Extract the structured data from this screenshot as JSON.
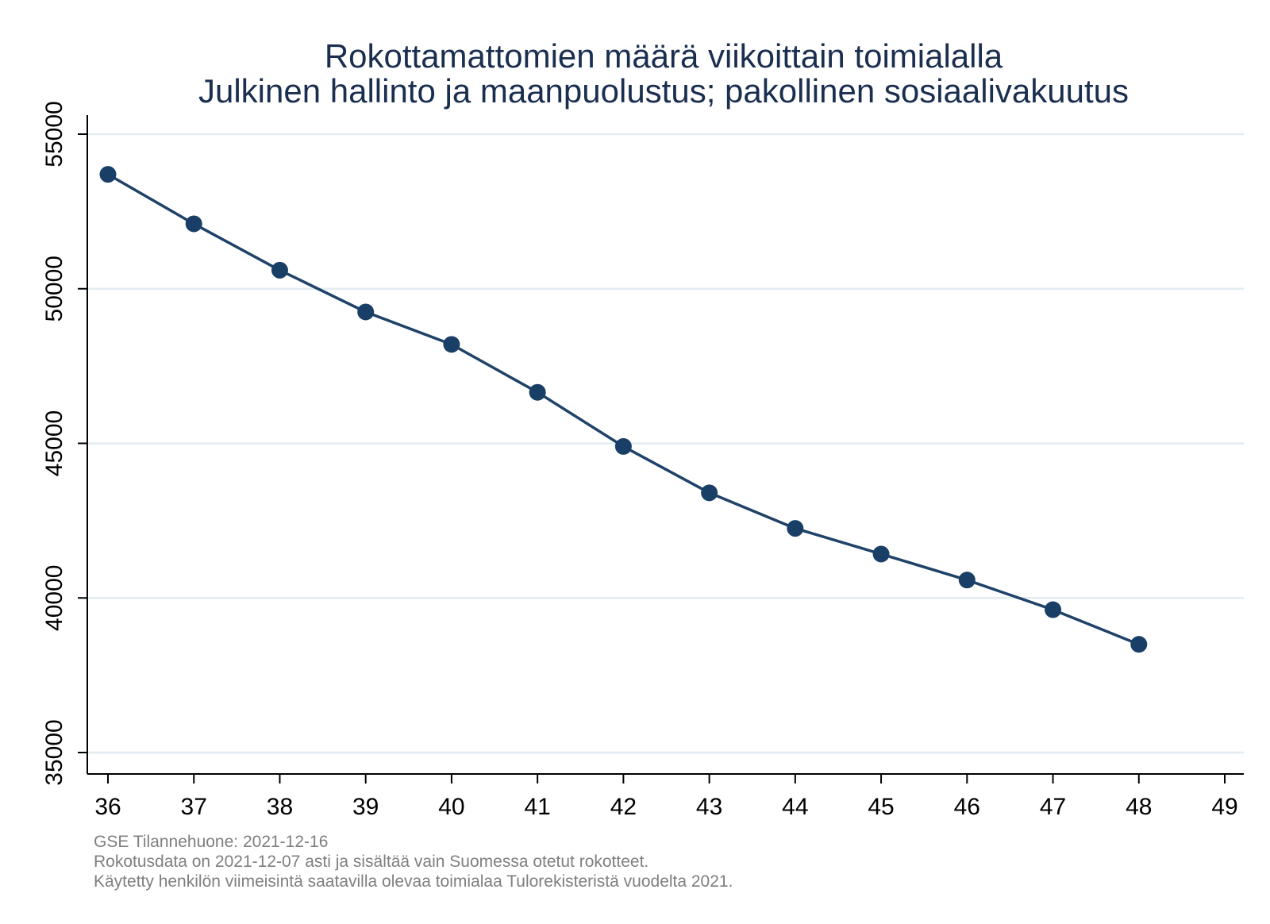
{
  "chart_data": {
    "type": "line",
    "title": [
      "Rokottamattomien määrä viikoittain toimialalla",
      "Julkinen hallinto ja maanpuolustus; pakollinen sosiaalivakuutus"
    ],
    "xlabel": "",
    "ylabel": "",
    "x": [
      36,
      37,
      38,
      39,
      40,
      41,
      42,
      43,
      44,
      45,
      46,
      47,
      48
    ],
    "series": [
      {
        "values": [
          53700,
          52100,
          50600,
          49250,
          48200,
          46650,
          44900,
          43400,
          42250,
          41420,
          40580,
          39620,
          38500
        ]
      }
    ],
    "xlim": [
      36,
      49
    ],
    "ylim": [
      35000,
      55000
    ],
    "xticks": [
      "36",
      "37",
      "38",
      "39",
      "40",
      "41",
      "42",
      "43",
      "44",
      "45",
      "46",
      "47",
      "48",
      "49"
    ],
    "yticks": [
      "35000",
      "40000",
      "45000",
      "50000",
      "55000"
    ],
    "grid": "horizontal",
    "legend": "none",
    "colors": {
      "line": "#1f4268",
      "marker": "#1a3f66",
      "grid": "#e3ecf1",
      "axis": "#000000",
      "title": "#1a2e4f",
      "notes": "#7f7f7f"
    },
    "notes": [
      "GSE Tilannehuone: 2021-12-16",
      "Rokotusdata on 2021-12-07 asti ja sisältää vain Suomessa otetut rokotteet.",
      "Käytetty henkilön viimeisintä saatavilla olevaa toimialaa Tulorekisteristä vuodelta 2021."
    ]
  }
}
